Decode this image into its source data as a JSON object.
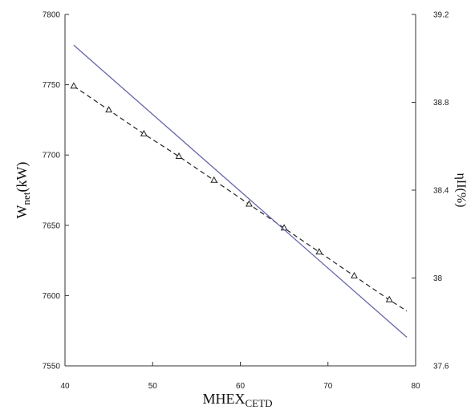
{
  "chart_data": {
    "type": "line",
    "xlabel": {
      "main": "MHEX",
      "sub": "CETD"
    },
    "ylabel_left": {
      "main": "W",
      "sub": "net",
      "suffix": "(kW)"
    },
    "ylabel_right": "ηII(%)",
    "xlim": [
      40,
      80
    ],
    "ylim_left": [
      7550,
      7800
    ],
    "ylim_right": [
      37.6,
      39.2
    ],
    "x_ticks": [
      "40",
      "50",
      "60",
      "70",
      "80"
    ],
    "y_left_ticks": [
      "7550",
      "7600",
      "7650",
      "7700",
      "7750",
      "7800"
    ],
    "y_right_ticks": [
      "37.6",
      "38",
      "38.4",
      "38.8",
      "39.2"
    ],
    "grid": false,
    "legend": "none",
    "series": [
      {
        "axis": "left",
        "style": "dashed-black-triangles",
        "color": "#222222",
        "x": [
          41,
          45,
          49,
          53,
          57,
          61,
          65,
          69,
          73,
          77
        ],
        "y": [
          7749,
          7732,
          7715,
          7699,
          7682,
          7665,
          7648,
          7631,
          7614,
          7597
        ],
        "line_end": [
          79,
          7589
        ]
      },
      {
        "axis": "right",
        "style": "solid-blue",
        "color": "#6666aa",
        "x": [
          41,
          79
        ],
        "y": [
          39.06,
          37.73
        ]
      }
    ]
  }
}
